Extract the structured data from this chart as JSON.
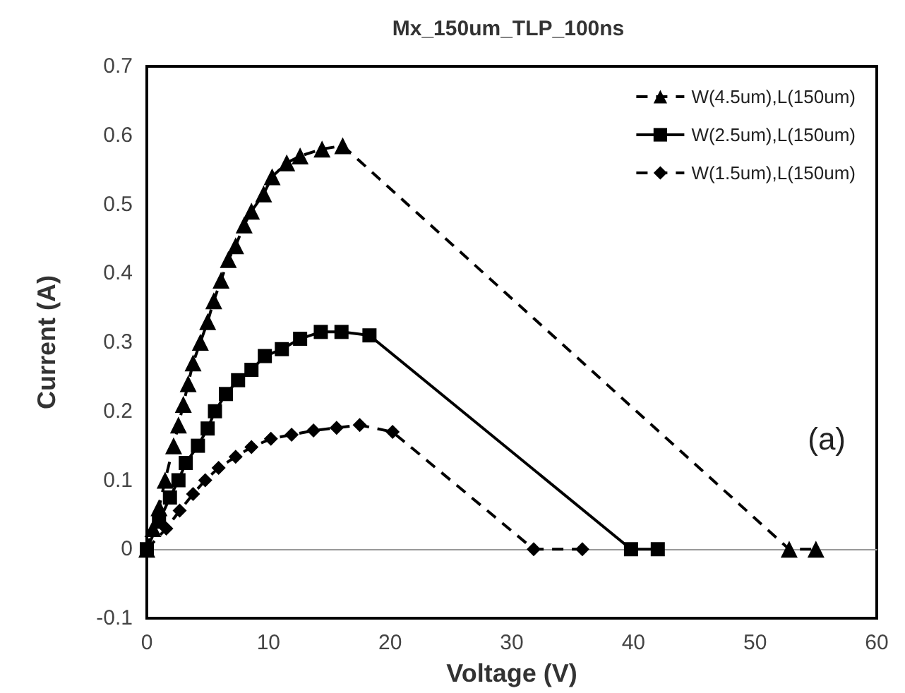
{
  "chart_data": {
    "type": "line",
    "title": "Mx_150um_TLP_100ns",
    "xlabel": "Voltage (V)",
    "ylabel": "Current (A)",
    "annotations": [
      "(a)"
    ],
    "xlim": [
      0,
      60
    ],
    "xticks": [
      0,
      10,
      20,
      30,
      40,
      50,
      60
    ],
    "ylim": [
      -0.1,
      0.7
    ],
    "yticks": [
      -0.1,
      0,
      0.1,
      0.2,
      0.3,
      0.4,
      0.5,
      0.6,
      0.7
    ],
    "legend": "top right",
    "series": [
      {
        "name": "W(4.5um),L(150um)",
        "color": "#000000",
        "marker": "triangle",
        "line_style": "dashed",
        "x": [
          0,
          0.5,
          1,
          1.5,
          2.2,
          2.6,
          3,
          3.4,
          3.8,
          4.4,
          5,
          5.5,
          6.1,
          6.7,
          7.3,
          8,
          8.6,
          9.6,
          10.3,
          11.5,
          12.6,
          14.4,
          16.1,
          52.8,
          55
        ],
        "values": [
          0,
          0.03,
          0.06,
          0.1,
          0.15,
          0.18,
          0.21,
          0.24,
          0.27,
          0.3,
          0.33,
          0.36,
          0.39,
          0.42,
          0.44,
          0.47,
          0.49,
          0.515,
          0.54,
          0.56,
          0.57,
          0.58,
          0.585,
          0,
          0
        ]
      },
      {
        "name": "W(2.5um),L(150um)",
        "color": "#000000",
        "marker": "square",
        "line_style": "solid",
        "x": [
          0,
          1,
          1.9,
          2.6,
          3.2,
          4.2,
          5,
          5.6,
          6.5,
          7.5,
          8.6,
          9.7,
          11.1,
          12.6,
          14.3,
          16,
          18.3,
          39.8,
          42
        ],
        "values": [
          0,
          0.04,
          0.075,
          0.1,
          0.125,
          0.15,
          0.175,
          0.2,
          0.225,
          0.245,
          0.26,
          0.28,
          0.29,
          0.305,
          0.315,
          0.315,
          0.31,
          0,
          0
        ]
      },
      {
        "name": "W(1.5um),L(150um)",
        "color": "#000000",
        "marker": "diamond",
        "line_style": "dashed",
        "x": [
          0,
          1.6,
          2.7,
          3.8,
          4.8,
          5.9,
          7.3,
          8.6,
          10.2,
          11.9,
          13.7,
          15.6,
          17.5,
          20.2,
          31.8,
          35.8
        ],
        "values": [
          0,
          0.03,
          0.056,
          0.08,
          0.1,
          0.118,
          0.134,
          0.148,
          0.16,
          0.166,
          0.172,
          0.176,
          0.18,
          0.17,
          0,
          0
        ]
      }
    ]
  }
}
